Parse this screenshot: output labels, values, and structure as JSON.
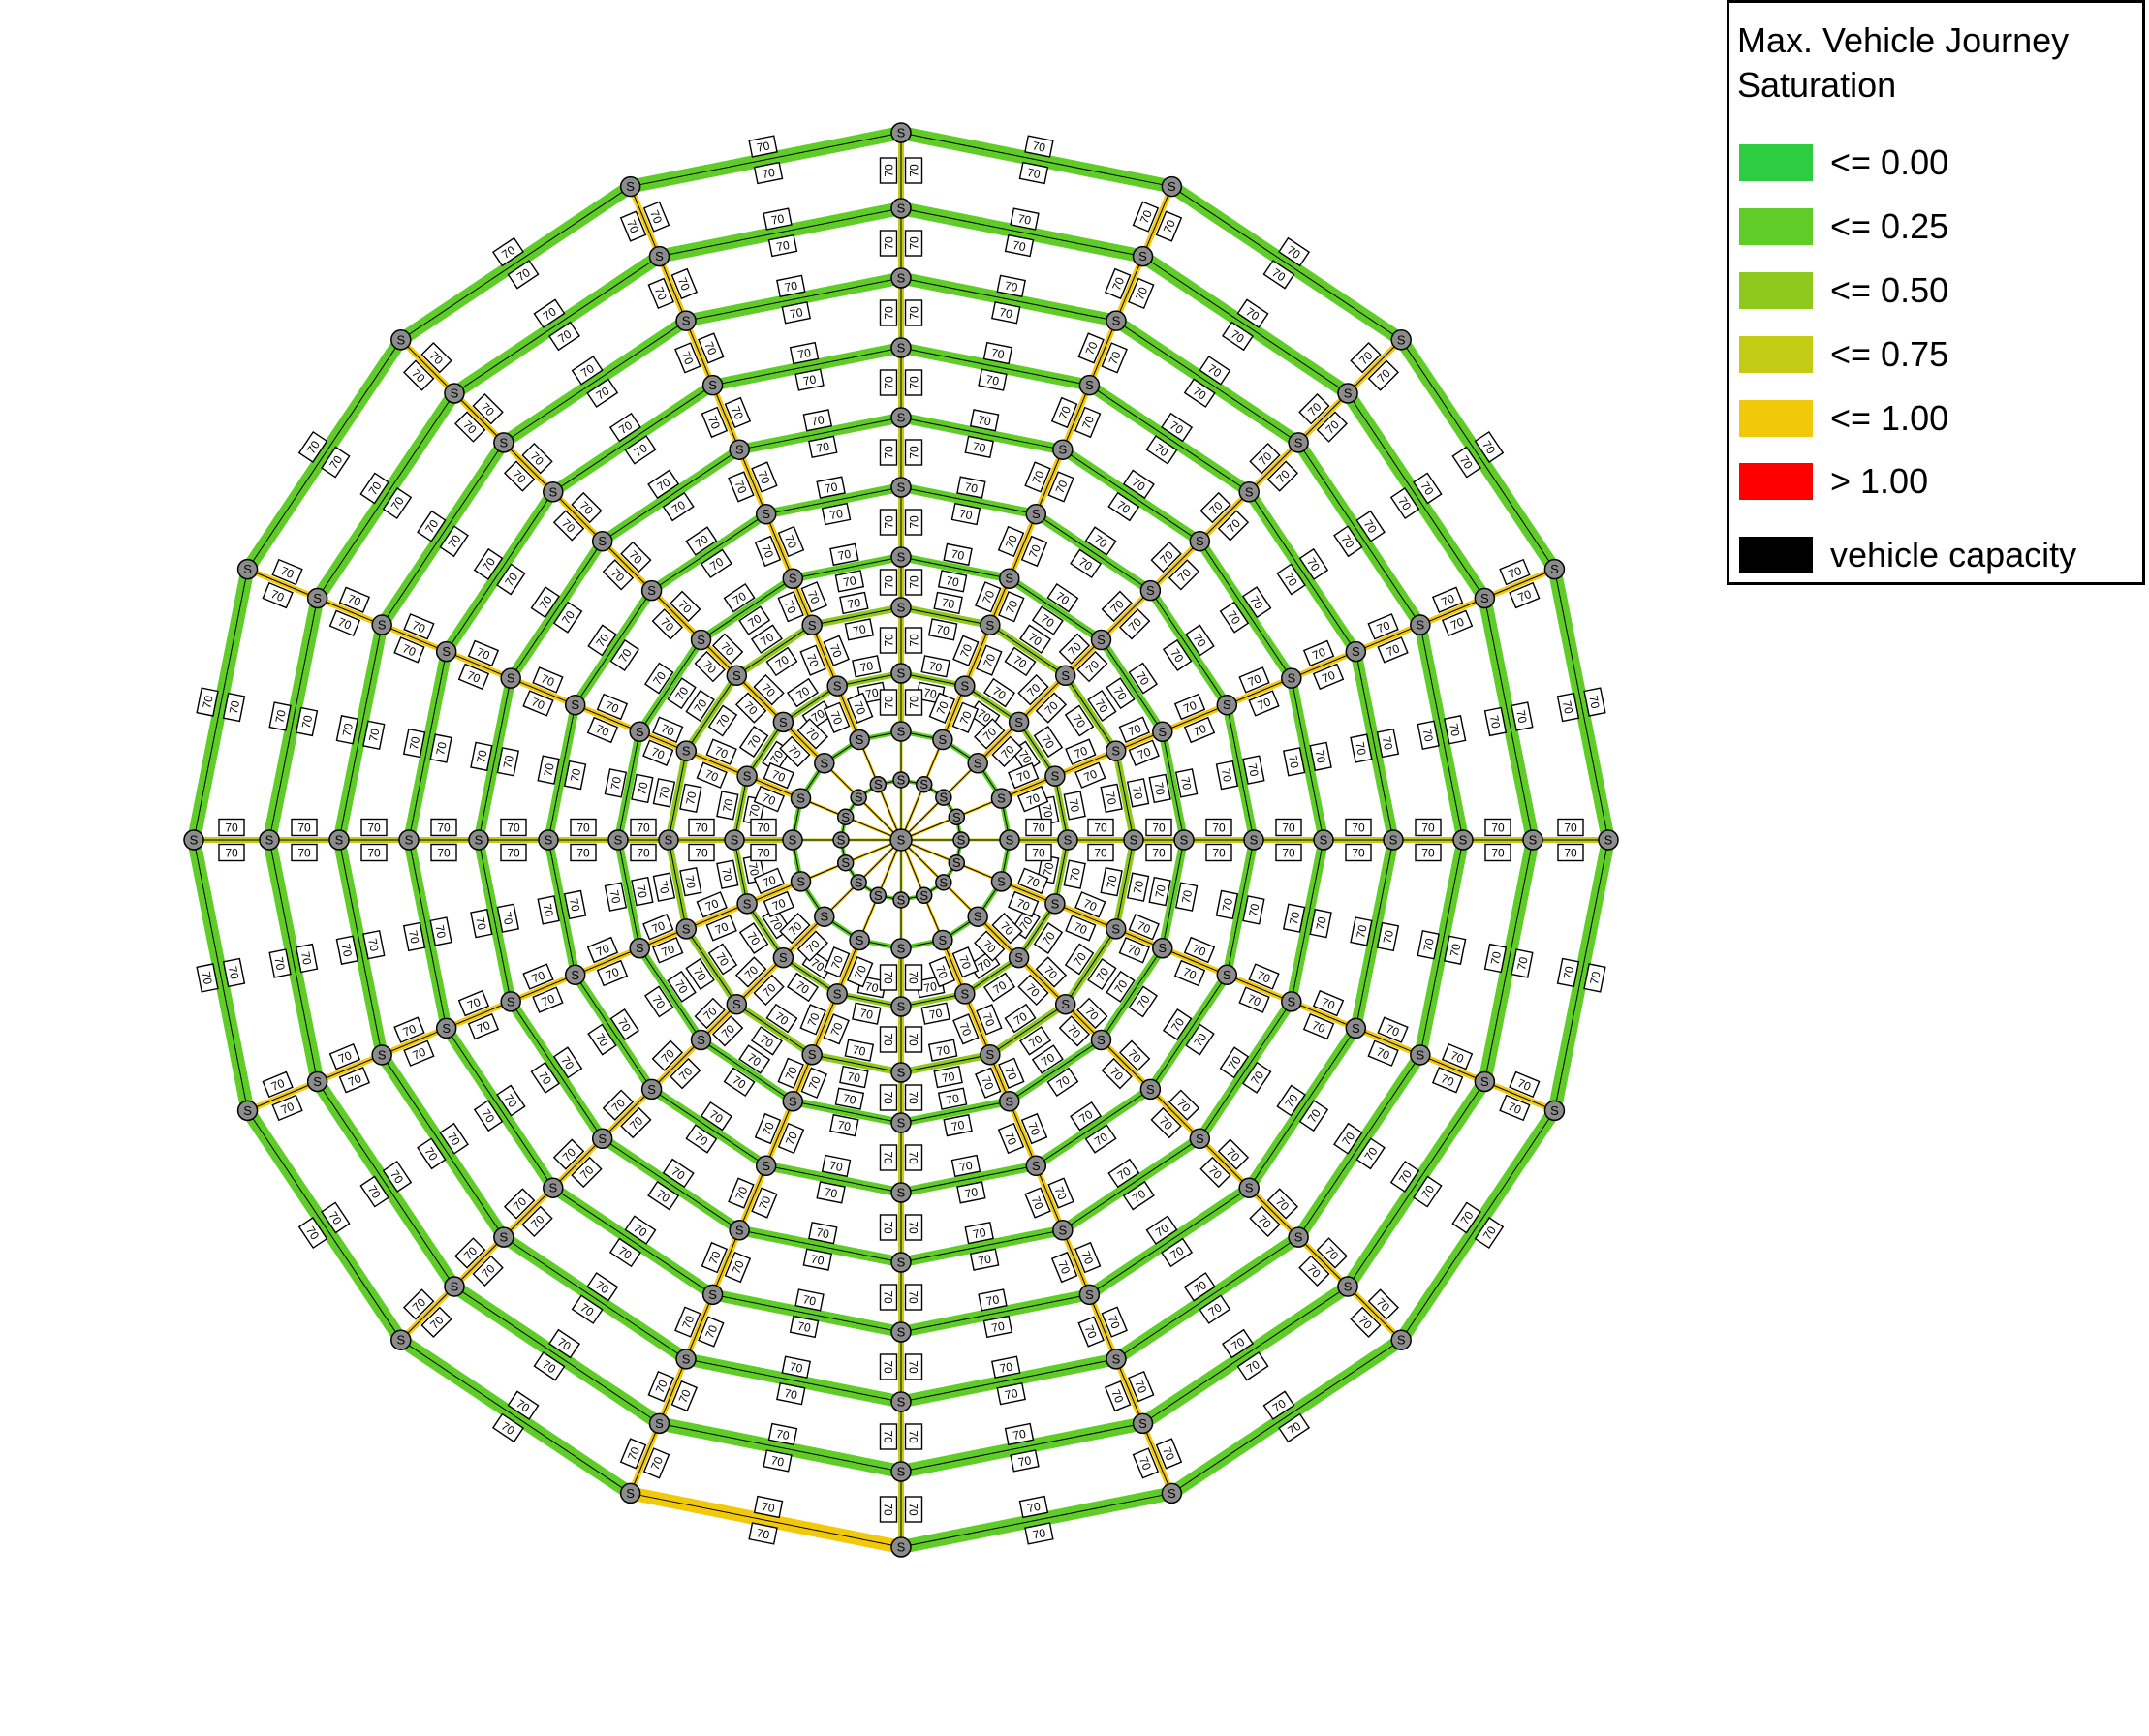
{
  "legend": {
    "title": "Max. Vehicle Journey Saturation",
    "entries": [
      {
        "label": "<= 0.00",
        "color": "#2ecc40"
      },
      {
        "label": "<= 0.25",
        "color": "#5fcc28"
      },
      {
        "label": "<= 0.50",
        "color": "#8fc91e"
      },
      {
        "label": "<= 0.75",
        "color": "#c2cc14"
      },
      {
        "label": "<= 1.00",
        "color": "#f2c90a"
      },
      {
        "label": "> 1.00",
        "color": "#ff0000"
      },
      {
        "label": "vehicle capacity",
        "color": "#000000"
      }
    ]
  },
  "network": {
    "spokes": 16,
    "rings": 11,
    "stop_symbol": "S",
    "capacity_label": "70",
    "colors": {
      "ring_outer": "#5fcc28",
      "ring_mid": "#8fc91e",
      "spoke_default": "#c2cc14",
      "spoke_busy": "#f2c90a",
      "bottom_link": "#f2c90a",
      "capacity_line": "#000000"
    },
    "mid_rings": [
      3,
      4
    ],
    "busy_spokes": [
      1,
      2,
      3,
      5,
      6,
      7,
      9,
      10,
      11,
      13,
      14,
      15
    ],
    "bottom_link_ring": 11,
    "bottom_link_spokes": [
      8,
      9
    ]
  }
}
